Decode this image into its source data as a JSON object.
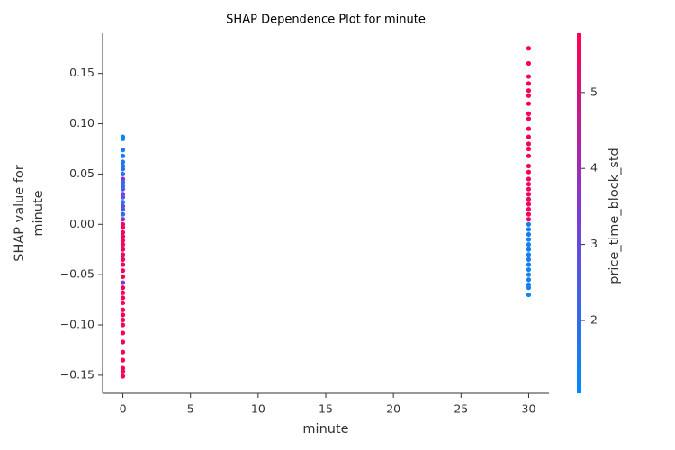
{
  "chart_data": {
    "type": "scatter",
    "title": "SHAP Dependence Plot for minute",
    "xlabel": "minute",
    "ylabel": [
      "SHAP value for",
      "minute"
    ],
    "colorbar_label": "price_time_block_std",
    "x": [
      0,
      0,
      0,
      0,
      0,
      0,
      0,
      0,
      0,
      0,
      0,
      0,
      0,
      0,
      0,
      0,
      0,
      0,
      0,
      0,
      0,
      0,
      0,
      0,
      0,
      0,
      0,
      0,
      0,
      0,
      0,
      0,
      0,
      0,
      0,
      0,
      0,
      0,
      0,
      0,
      0,
      0,
      0,
      0,
      0,
      0,
      0,
      30,
      30,
      30,
      30,
      30,
      30,
      30,
      30,
      30,
      30,
      30,
      30,
      30,
      30,
      30,
      30,
      30,
      30,
      30,
      30,
      30,
      30,
      30,
      30,
      30,
      30,
      30,
      30,
      30,
      30,
      30,
      30,
      30,
      30,
      30,
      30,
      30,
      30,
      30,
      30
    ],
    "values": [
      0.087,
      0.085,
      0.074,
      0.068,
      0.062,
      0.058,
      0.055,
      0.05,
      0.045,
      0.042,
      0.038,
      0.035,
      0.03,
      0.027,
      0.022,
      0.018,
      0.015,
      0.01,
      0.005,
      0.0,
      -0.003,
      -0.008,
      -0.012,
      -0.016,
      -0.02,
      -0.025,
      -0.03,
      -0.035,
      -0.04,
      -0.046,
      -0.052,
      -0.058,
      -0.063,
      -0.068,
      -0.073,
      -0.078,
      -0.085,
      -0.09,
      -0.095,
      -0.1,
      -0.108,
      -0.117,
      -0.127,
      -0.135,
      -0.143,
      -0.146,
      -0.151,
      0.175,
      0.16,
      0.147,
      0.14,
      0.133,
      0.128,
      0.12,
      0.11,
      0.105,
      0.095,
      0.087,
      0.08,
      0.075,
      0.068,
      0.058,
      0.052,
      0.045,
      0.04,
      0.035,
      0.03,
      0.025,
      0.02,
      0.015,
      0.01,
      0.005,
      0.0,
      -0.005,
      -0.01,
      -0.015,
      -0.02,
      -0.025,
      -0.03,
      -0.035,
      -0.04,
      -0.045,
      -0.05,
      -0.055,
      -0.06,
      -0.063,
      -0.07
    ],
    "color_values": [
      1.2,
      1.3,
      1.4,
      1.5,
      1.6,
      1.8,
      1.7,
      2.0,
      3.5,
      2.2,
      1.9,
      2.5,
      3.2,
      2.8,
      1.5,
      3.0,
      2.4,
      2.0,
      3.8,
      5.5,
      5.7,
      5.6,
      5.4,
      5.7,
      5.5,
      5.6,
      5.3,
      5.7,
      5.6,
      5.5,
      5.7,
      3.3,
      5.6,
      5.5,
      5.7,
      5.6,
      5.5,
      5.7,
      5.6,
      5.5,
      5.7,
      5.6,
      5.5,
      5.7,
      5.6,
      5.5,
      5.7,
      5.7,
      5.6,
      5.5,
      5.7,
      5.6,
      5.5,
      5.7,
      5.6,
      5.5,
      5.7,
      5.6,
      5.5,
      5.7,
      5.6,
      5.5,
      5.7,
      5.6,
      5.4,
      5.5,
      5.7,
      5.3,
      5.6,
      5.5,
      5.7,
      5.6,
      1.5,
      1.3,
      1.6,
      1.4,
      1.2,
      1.5,
      1.3,
      1.6,
      1.4,
      1.2,
      1.5,
      1.3,
      1.6,
      1.4,
      1.2
    ],
    "colormap": [
      "#008bfb",
      "#7e3bd6",
      "#ff0052"
    ],
    "xlim": [
      -1.5,
      31.5
    ],
    "xticks": [
      0,
      5,
      10,
      15,
      20,
      25,
      30
    ],
    "ylim": [
      -0.168,
      0.19
    ],
    "yticks": [
      {
        "value": -0.15,
        "label": "−0.15"
      },
      {
        "value": -0.1,
        "label": "−0.10"
      },
      {
        "value": -0.05,
        "label": "−0.05"
      },
      {
        "value": 0,
        "label": "0.00"
      },
      {
        "value": 0.05,
        "label": "0.05"
      },
      {
        "value": 0.1,
        "label": "0.10"
      },
      {
        "value": 0.15,
        "label": "0.15"
      }
    ],
    "clim": [
      1.04,
      5.78
    ],
    "cticks": [
      2,
      3,
      4,
      5
    ]
  }
}
